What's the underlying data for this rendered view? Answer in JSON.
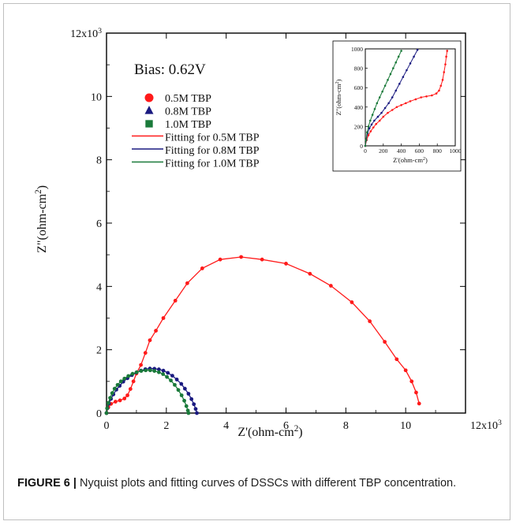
{
  "caption": {
    "label": "FIGURE 6 |",
    "text": " Nyquist plots and fitting curves of DSSCs with different TBP concentration."
  },
  "colors": {
    "red": "#ff1a1a",
    "blue": "#1a1a80",
    "green": "#1a7a3a"
  },
  "chart_data": [
    {
      "type": "scatter",
      "annotation": "Bias: 0.62V",
      "xlabel": "Z'(ohm-cm²)",
      "ylabel": "Z\"(ohm-cm²)",
      "xlim": [
        0,
        12000
      ],
      "ylim": [
        0,
        12000
      ],
      "x_ticks": [
        "0",
        "2",
        "4",
        "6",
        "8",
        "10",
        "12x10³"
      ],
      "y_ticks": [
        "0",
        "2",
        "4",
        "6",
        "8",
        "10",
        "12x10³"
      ],
      "legend_position": "upper-left",
      "series": [
        {
          "name": "0.5M TBP",
          "color": "#ff1a1a",
          "marker": "circle",
          "fit_name": "Fitting for 0.5M TBP",
          "points": [
            [
              0,
              0
            ],
            [
              60,
              180
            ],
            [
              150,
              290
            ],
            [
              300,
              360
            ],
            [
              450,
              400
            ],
            [
              600,
              460
            ],
            [
              700,
              560
            ],
            [
              800,
              760
            ],
            [
              900,
              1000
            ],
            [
              1000,
              1250
            ],
            [
              1150,
              1520
            ],
            [
              1300,
              1900
            ],
            [
              1450,
              2300
            ],
            [
              1650,
              2600
            ],
            [
              1900,
              3000
            ],
            [
              2300,
              3550
            ],
            [
              2700,
              4100
            ],
            [
              3200,
              4570
            ],
            [
              3800,
              4850
            ],
            [
              4500,
              4930
            ],
            [
              5200,
              4850
            ],
            [
              6000,
              4720
            ],
            [
              6800,
              4400
            ],
            [
              7500,
              4020
            ],
            [
              8200,
              3500
            ],
            [
              8800,
              2900
            ],
            [
              9300,
              2250
            ],
            [
              9700,
              1700
            ],
            [
              10000,
              1350
            ],
            [
              10200,
              1000
            ],
            [
              10350,
              650
            ],
            [
              10450,
              300
            ]
          ]
        },
        {
          "name": "0.8M TBP",
          "color": "#1a1a80",
          "marker": "triangle",
          "fit_name": "Fitting for 0.8M TBP",
          "points": [
            [
              0,
              0
            ],
            [
              30,
              150
            ],
            [
              80,
              300
            ],
            [
              150,
              450
            ],
            [
              230,
              590
            ],
            [
              330,
              740
            ],
            [
              440,
              860
            ],
            [
              560,
              990
            ],
            [
              700,
              1100
            ],
            [
              850,
              1200
            ],
            [
              1000,
              1280
            ],
            [
              1150,
              1340
            ],
            [
              1300,
              1385
            ],
            [
              1450,
              1405
            ],
            [
              1600,
              1400
            ],
            [
              1750,
              1380
            ],
            [
              1900,
              1340
            ],
            [
              2050,
              1270
            ],
            [
              2200,
              1180
            ],
            [
              2350,
              1060
            ],
            [
              2500,
              920
            ],
            [
              2620,
              770
            ],
            [
              2740,
              610
            ],
            [
              2840,
              440
            ],
            [
              2920,
              280
            ],
            [
              2980,
              130
            ],
            [
              3020,
              0
            ]
          ]
        },
        {
          "name": "1.0M TBP",
          "color": "#1a7a3a",
          "marker": "square",
          "fit_name": "Fitting for 1.0M TBP",
          "points": [
            [
              0,
              0
            ],
            [
              20,
              150
            ],
            [
              60,
              320
            ],
            [
              120,
              480
            ],
            [
              190,
              630
            ],
            [
              270,
              770
            ],
            [
              370,
              890
            ],
            [
              480,
              1000
            ],
            [
              600,
              1090
            ],
            [
              730,
              1170
            ],
            [
              870,
              1240
            ],
            [
              1010,
              1290
            ],
            [
              1160,
              1330
            ],
            [
              1310,
              1350
            ],
            [
              1460,
              1350
            ],
            [
              1600,
              1330
            ],
            [
              1750,
              1290
            ],
            [
              1890,
              1230
            ],
            [
              2020,
              1140
            ],
            [
              2150,
              1030
            ],
            [
              2280,
              890
            ],
            [
              2400,
              730
            ],
            [
              2510,
              560
            ],
            [
              2600,
              390
            ],
            [
              2670,
              220
            ],
            [
              2720,
              80
            ],
            [
              2740,
              0
            ]
          ]
        }
      ]
    },
    {
      "type": "line",
      "role": "inset",
      "xlabel": "Z'(ohm-cm²)",
      "ylabel": "Z\"(ohm-cm²)",
      "xlim": [
        0,
        1000
      ],
      "ylim": [
        0,
        1000
      ],
      "x_ticks": [
        "0",
        "200",
        "400",
        "600",
        "800",
        "1000"
      ],
      "y_ticks": [
        "0",
        "200",
        "400",
        "600",
        "800",
        "1000"
      ],
      "series": [
        {
          "color": "#ff1a1a",
          "points": [
            [
              0,
              0
            ],
            [
              15,
              60
            ],
            [
              35,
              110
            ],
            [
              60,
              150
            ],
            [
              90,
              190
            ],
            [
              120,
              225
            ],
            [
              160,
              260
            ],
            [
              200,
              300
            ],
            [
              250,
              340
            ],
            [
              300,
              370
            ],
            [
              350,
              400
            ],
            [
              400,
              420
            ],
            [
              450,
              440
            ],
            [
              500,
              460
            ],
            [
              560,
              480
            ],
            [
              620,
              500
            ],
            [
              680,
              510
            ],
            [
              740,
              520
            ],
            [
              790,
              540
            ],
            [
              820,
              570
            ],
            [
              840,
              620
            ],
            [
              860,
              680
            ],
            [
              875,
              760
            ],
            [
              890,
              840
            ],
            [
              900,
              920
            ],
            [
              910,
              980
            ]
          ]
        },
        {
          "color": "#1a1a80",
          "points": [
            [
              0,
              0
            ],
            [
              10,
              60
            ],
            [
              25,
              130
            ],
            [
              45,
              180
            ],
            [
              70,
              220
            ],
            [
              100,
              260
            ],
            [
              140,
              300
            ],
            [
              180,
              340
            ],
            [
              220,
              390
            ],
            [
              260,
              440
            ],
            [
              300,
              500
            ],
            [
              340,
              570
            ],
            [
              380,
              640
            ],
            [
              420,
              710
            ],
            [
              460,
              780
            ],
            [
              500,
              850
            ],
            [
              540,
              920
            ],
            [
              580,
              990
            ]
          ]
        },
        {
          "color": "#1a7a3a",
          "points": [
            [
              0,
              0
            ],
            [
              8,
              60
            ],
            [
              20,
              140
            ],
            [
              35,
              200
            ],
            [
              55,
              260
            ],
            [
              80,
              320
            ],
            [
              105,
              380
            ],
            [
              130,
              440
            ],
            [
              160,
              500
            ],
            [
              190,
              560
            ],
            [
              220,
              620
            ],
            [
              250,
              680
            ],
            [
              280,
              740
            ],
            [
              310,
              800
            ],
            [
              340,
              860
            ],
            [
              370,
              920
            ],
            [
              400,
              980
            ]
          ]
        }
      ]
    }
  ]
}
